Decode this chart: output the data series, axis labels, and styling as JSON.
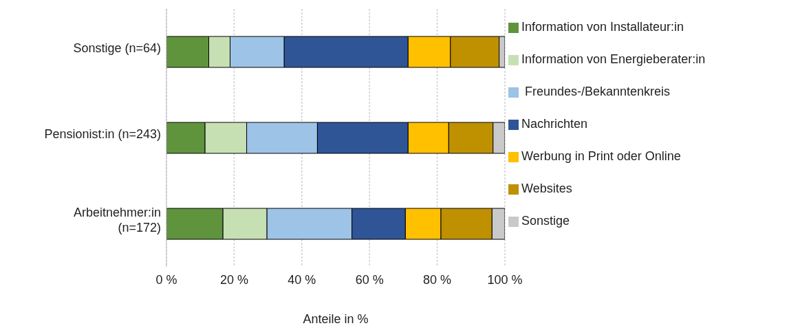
{
  "chart_data": {
    "type": "bar",
    "orientation": "horizontal",
    "stacked": true,
    "xlabel": "Anteile in %",
    "categories": [
      "Sonstige (n=64)",
      "Pensionist:in (n=243)",
      "Arbeitnehmer:in (n=172)"
    ],
    "series": [
      {
        "name": "Information von Installateur:in",
        "color": "#5f943d",
        "values": [
          12.5,
          11.4,
          16.7
        ]
      },
      {
        "name": "Information von Energieberater:in",
        "color": "#c6e0b4",
        "values": [
          6.3,
          12.3,
          13.0
        ]
      },
      {
        "name": " Freundes-/Bekanntenkreis",
        "color": "#9dc3e6",
        "values": [
          16.0,
          20.9,
          25.1
        ]
      },
      {
        "name": "Nachrichten",
        "color": "#2f5597",
        "values": [
          36.6,
          26.8,
          15.8
        ]
      },
      {
        "name": "Werbung in Print oder Online",
        "color": "#ffc000",
        "values": [
          12.5,
          12.0,
          10.5
        ]
      },
      {
        "name": "Websites",
        "color": "#bf9000",
        "values": [
          14.4,
          13.1,
          15.1
        ]
      },
      {
        "name": "Sonstige",
        "color": "#c9c9c9",
        "values": [
          1.7,
          3.5,
          3.8
        ]
      }
    ],
    "xlim": [
      0,
      100
    ],
    "xticks": [
      {
        "value": 0,
        "label": "0 %"
      },
      {
        "value": 20,
        "label": "20 %"
      },
      {
        "value": 40,
        "label": "40 %"
      },
      {
        "value": 60,
        "label": "60 %"
      },
      {
        "value": 80,
        "label": "80 %"
      },
      {
        "value": 100,
        "label": "100 %"
      }
    ],
    "grid": "x",
    "legend": "right"
  }
}
